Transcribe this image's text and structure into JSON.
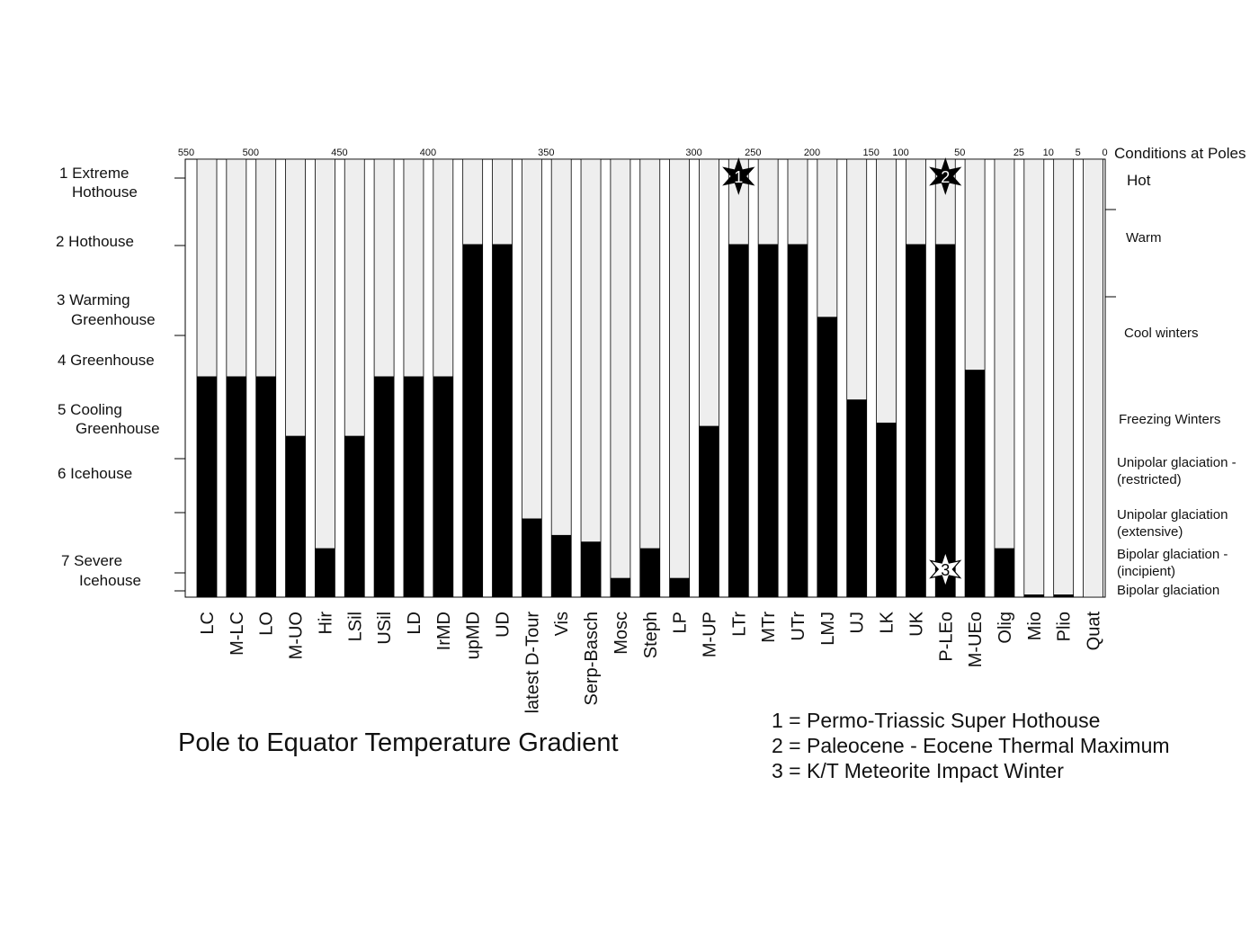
{
  "title": "Pole to Equator Temperature Gradient",
  "notes": [
    "1 = Permo-Triassic Super Hothouse",
    "2 = Paleocene - Eocene Thermal Maximum",
    "3 = K/T Meteorite Impact Winter"
  ],
  "levels": [
    {
      "l1": "1 Extreme",
      "l2": "Hothouse"
    },
    {
      "l1": "2  Hothouse",
      "l2": ""
    },
    {
      "l1": "3 Warming",
      "l2": "Greenhouse"
    },
    {
      "l1": "4  Greenhouse",
      "l2": ""
    },
    {
      "l1": "5  Cooling",
      "l2": "Greenhouse"
    },
    {
      "l1": "6  Icehouse",
      "l2": ""
    },
    {
      "l1": "7  Severe",
      "l2": "Icehouse"
    }
  ],
  "pole_header": "Conditions at Poles",
  "pole_conditions": [
    {
      "l1": "Hot",
      "l2": ""
    },
    {
      "l1": "Warm",
      "l2": ""
    },
    {
      "l1": "Cool winters",
      "l2": ""
    },
    {
      "l1": "Freezing Winters",
      "l2": ""
    },
    {
      "l1": "Unipolar glaciation -",
      "l2": "(restricted)"
    },
    {
      "l1": "Unipolar glaciation",
      "l2": "(extensive)"
    },
    {
      "l1": "Bipolar glaciation -",
      "l2": "(incipient)"
    },
    {
      "l1": "Bipolar glaciation",
      "l2": ""
    }
  ],
  "colors": {
    "bar_fill": "#000000",
    "bar_background": "#eeeeee",
    "frame": "#000000"
  },
  "chart_data": {
    "type": "bar",
    "categories": [
      "LC",
      "M-LC",
      "LO",
      "M-UO",
      "Hir",
      "LSil",
      "USil",
      "LD",
      "IrMD",
      "upMD",
      "UD",
      "latest D-Tour",
      "Vis",
      "Serp-Basch",
      "Mosc",
      "Steph",
      "LP",
      "M-UP",
      "LTr",
      "MTr",
      "UTr",
      "LMJ",
      "UJ",
      "LK",
      "UK",
      "P-LEo",
      "M-UEo",
      "Olig",
      "Mio",
      "Plio",
      "Quat"
    ],
    "values": [
      4,
      4,
      4,
      4.9,
      6.6,
      4.9,
      4,
      4,
      4,
      2,
      2,
      6.15,
      6.4,
      6.5,
      7.05,
      6.6,
      7.05,
      4.75,
      2,
      2,
      2,
      3.1,
      4.35,
      4.7,
      2,
      2,
      3.9,
      6.6,
      7.3,
      7.3,
      7.65
    ],
    "top_axis_ticks": [
      "550",
      "500",
      "450",
      "400",
      "350",
      "300",
      "250",
      "200",
      "150",
      "100",
      "50",
      "25",
      "10",
      "5",
      "0"
    ],
    "top_axis_tick_after_category": [
      0,
      1,
      4,
      7,
      11,
      16,
      18,
      20,
      22,
      23,
      25,
      27,
      28,
      29,
      30
    ],
    "markers": [
      {
        "label": "1",
        "category": "LTr",
        "position": "top",
        "style": "black-star"
      },
      {
        "label": "2",
        "category": "P-LEo",
        "position": "top",
        "style": "black-star"
      },
      {
        "label": "3",
        "category": "P-LEo",
        "position": "bottom",
        "style": "white-star"
      }
    ],
    "y_level_count": 7,
    "ylim": [
      1,
      8
    ],
    "note": ""
  }
}
